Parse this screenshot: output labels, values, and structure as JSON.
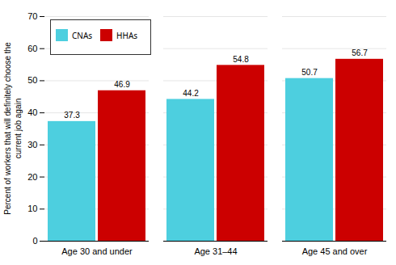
{
  "chart_data": {
    "type": "bar",
    "categories": [
      "Age 30 and under",
      "Age 31–44",
      "Age 45 and over"
    ],
    "series": [
      {
        "name": "CNAs",
        "color": "#4DCFDF",
        "values": [
          37.3,
          44.2,
          50.7
        ]
      },
      {
        "name": "HHAs",
        "color": "#CC0000",
        "values": [
          46.9,
          54.8,
          56.7
        ]
      }
    ],
    "ylabel": "Percent of workers that will definitely choose the\ncurrent job again",
    "ylim": [
      0,
      70
    ],
    "yticks": [
      0,
      10,
      20,
      30,
      40,
      50,
      60,
      70
    ],
    "grid": true,
    "legend": "upper left",
    "data_labels": true
  }
}
